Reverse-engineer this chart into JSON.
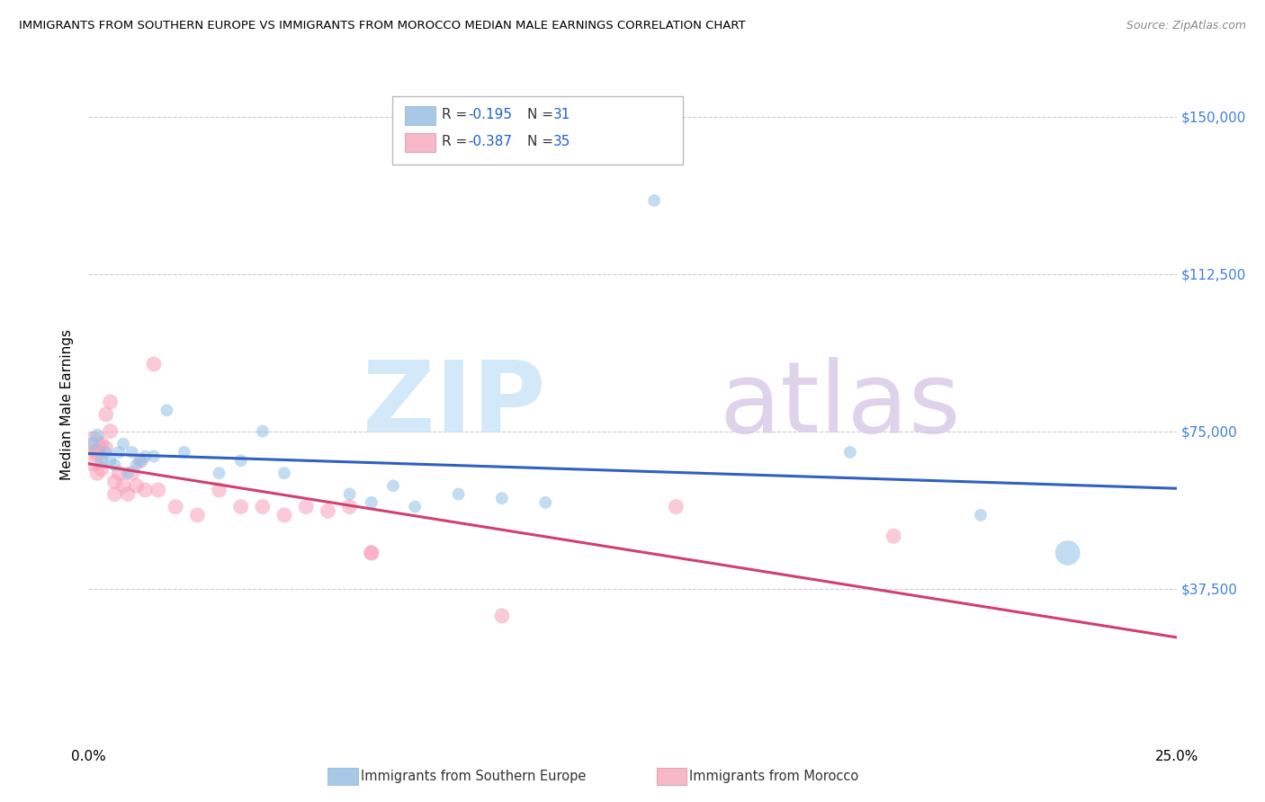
{
  "title": "IMMIGRANTS FROM SOUTHERN EUROPE VS IMMIGRANTS FROM MOROCCO MEDIAN MALE EARNINGS CORRELATION CHART",
  "source": "Source: ZipAtlas.com",
  "ylabel": "Median Male Earnings",
  "xlim": [
    0.0,
    0.25
  ],
  "ylim": [
    0,
    162500
  ],
  "ytick_vals": [
    37500,
    75000,
    112500,
    150000
  ],
  "xtick_vals": [
    0.0,
    0.05,
    0.1,
    0.15,
    0.2,
    0.25
  ],
  "xtick_labels": [
    "0.0%",
    "",
    "",
    "",
    "",
    "25.0%"
  ],
  "legend_entries": [
    {
      "label": "Immigrants from Southern Europe",
      "R": "-0.195",
      "N": "31",
      "color": "#a8c8e8"
    },
    {
      "label": "Immigrants from Morocco",
      "R": "-0.387",
      "N": "35",
      "color": "#f8b8c8"
    }
  ],
  "blue_scatter_color": "#90c0e8",
  "pink_scatter_color": "#f8a0b8",
  "trendline_blue": "#3060c0",
  "trendline_pink": "#d04070",
  "ytick_color": "#4080e0",
  "blue_points": [
    [
      0.001,
      72000
    ],
    [
      0.002,
      74000
    ],
    [
      0.003,
      68000
    ],
    [
      0.004,
      70000
    ],
    [
      0.005,
      68000
    ],
    [
      0.006,
      67000
    ],
    [
      0.007,
      70000
    ],
    [
      0.008,
      72000
    ],
    [
      0.009,
      65000
    ],
    [
      0.01,
      70000
    ],
    [
      0.011,
      67000
    ],
    [
      0.012,
      68000
    ],
    [
      0.013,
      69000
    ],
    [
      0.015,
      69000
    ],
    [
      0.018,
      80000
    ],
    [
      0.022,
      70000
    ],
    [
      0.03,
      65000
    ],
    [
      0.035,
      68000
    ],
    [
      0.04,
      75000
    ],
    [
      0.045,
      65000
    ],
    [
      0.06,
      60000
    ],
    [
      0.065,
      58000
    ],
    [
      0.07,
      62000
    ],
    [
      0.075,
      57000
    ],
    [
      0.085,
      60000
    ],
    [
      0.095,
      59000
    ],
    [
      0.105,
      58000
    ],
    [
      0.13,
      130000
    ],
    [
      0.175,
      70000
    ],
    [
      0.205,
      55000
    ],
    [
      0.225,
      46000
    ]
  ],
  "blue_sizes": [
    120,
    120,
    120,
    100,
    100,
    100,
    100,
    100,
    100,
    100,
    100,
    100,
    100,
    100,
    100,
    100,
    100,
    100,
    100,
    100,
    100,
    100,
    100,
    100,
    100,
    100,
    100,
    100,
    100,
    100,
    400
  ],
  "pink_points": [
    [
      0.001,
      72000
    ],
    [
      0.001,
      68000
    ],
    [
      0.002,
      70000
    ],
    [
      0.002,
      65000
    ],
    [
      0.003,
      72000
    ],
    [
      0.003,
      66000
    ],
    [
      0.004,
      79000
    ],
    [
      0.004,
      71000
    ],
    [
      0.005,
      82000
    ],
    [
      0.005,
      75000
    ],
    [
      0.006,
      63000
    ],
    [
      0.006,
      60000
    ],
    [
      0.007,
      65000
    ],
    [
      0.008,
      62000
    ],
    [
      0.009,
      60000
    ],
    [
      0.01,
      65000
    ],
    [
      0.011,
      62000
    ],
    [
      0.012,
      68000
    ],
    [
      0.013,
      61000
    ],
    [
      0.015,
      91000
    ],
    [
      0.016,
      61000
    ],
    [
      0.02,
      57000
    ],
    [
      0.025,
      55000
    ],
    [
      0.03,
      61000
    ],
    [
      0.035,
      57000
    ],
    [
      0.04,
      57000
    ],
    [
      0.045,
      55000
    ],
    [
      0.05,
      57000
    ],
    [
      0.055,
      56000
    ],
    [
      0.06,
      57000
    ],
    [
      0.065,
      46000
    ],
    [
      0.065,
      46000
    ],
    [
      0.095,
      31000
    ],
    [
      0.135,
      57000
    ],
    [
      0.185,
      50000
    ]
  ],
  "pink_sizes": [
    400,
    300,
    200,
    150,
    150,
    150,
    150,
    150,
    150,
    150,
    150,
    150,
    150,
    150,
    150,
    150,
    150,
    150,
    150,
    150,
    150,
    150,
    150,
    150,
    150,
    150,
    150,
    150,
    150,
    150,
    150,
    150,
    150,
    150,
    150
  ]
}
